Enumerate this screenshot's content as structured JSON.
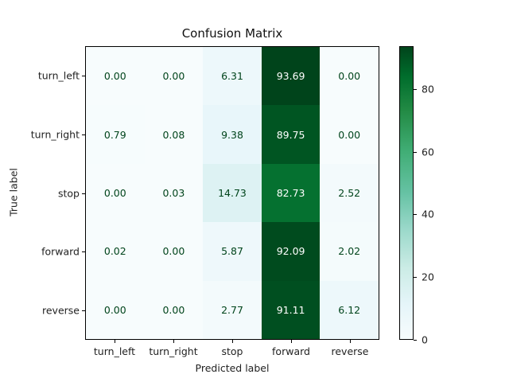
{
  "chart_data": {
    "type": "heatmap",
    "title": "Confusion Matrix",
    "xlabel": "Predicted label",
    "ylabel": "True label",
    "x_categories": [
      "turn_left",
      "turn_right",
      "stop",
      "forward",
      "reverse"
    ],
    "y_categories": [
      "turn_left",
      "turn_right",
      "stop",
      "forward",
      "reverse"
    ],
    "values": [
      [
        0.0,
        0.0,
        6.31,
        93.69,
        0.0
      ],
      [
        0.79,
        0.08,
        9.38,
        89.75,
        0.0
      ],
      [
        0.0,
        0.03,
        14.73,
        82.73,
        2.52
      ],
      [
        0.02,
        0.0,
        5.87,
        92.09,
        2.02
      ],
      [
        0.0,
        0.0,
        2.77,
        91.11,
        6.12
      ]
    ],
    "value_labels": [
      [
        "0.00",
        "0.00",
        "6.31",
        "93.69",
        "0.00"
      ],
      [
        "0.79",
        "0.08",
        "9.38",
        "89.75",
        "0.00"
      ],
      [
        "0.00",
        "0.03",
        "14.73",
        "82.73",
        "2.52"
      ],
      [
        "0.02",
        "0.00",
        "5.87",
        "92.09",
        "2.02"
      ],
      [
        "0.00",
        "0.00",
        "2.77",
        "91.11",
        "6.12"
      ]
    ],
    "colormap": "Greens-like (BuGn)",
    "colorbar": {
      "range": [
        0,
        93.69
      ],
      "ticks": [
        "0",
        "20",
        "40",
        "60",
        "80"
      ]
    }
  }
}
